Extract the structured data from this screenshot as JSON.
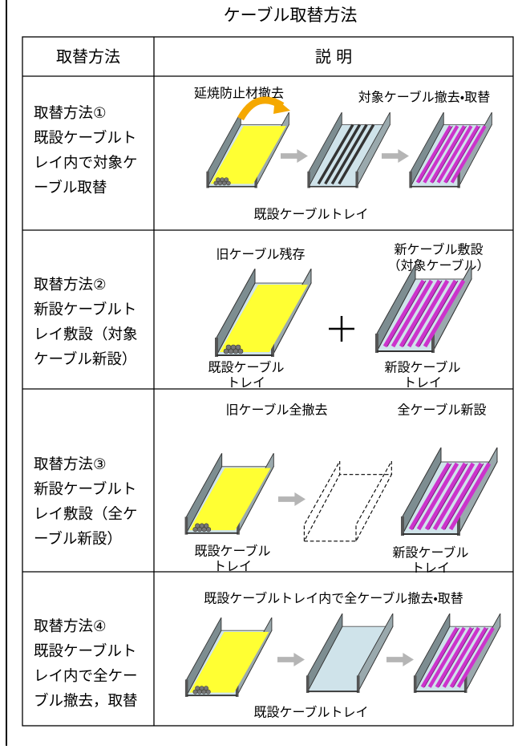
{
  "title": "ケーブル取替方法",
  "table": {
    "header": [
      "取替方法",
      "説 明"
    ],
    "rows": [
      {
        "method": [
          "取替方法①",
          "既設ケーブルト",
          "レイ内で対象ケ",
          "ーブル取替"
        ],
        "notes": [
          [
            "延焼防止材撤去"
          ],
          [
            "対象ケーブル撤去・取替"
          ],
          [
            "既設ケーブルトレイ"
          ]
        ]
      },
      {
        "method": [
          "取替方法②",
          "新設ケーブルト",
          "レイ敷設（対象",
          "ケーブル新設）"
        ],
        "notes": [
          [
            "旧ケーブル残存"
          ],
          [
            "新ケーブル敷設",
            "（対象ケーブル）"
          ],
          [
            "既設ケーブル",
            "トレイ"
          ],
          [
            "新設ケーブル",
            "トレイ"
          ]
        ]
      },
      {
        "method": [
          "取替方法③",
          "新設ケーブルト",
          "レイ敷設（全ケ",
          "ーブル新設）"
        ],
        "notes": [
          [
            "旧ケーブル全撤去"
          ],
          [
            "全ケーブル新設"
          ],
          [
            "既設ケーブル",
            "トレイ"
          ],
          [
            "新設ケーブル",
            "トレイ"
          ]
        ]
      },
      {
        "method": [
          "取替方法④",
          "既設ケーブルト",
          "レイ内で全ケー",
          "ブル撤去，取替"
        ],
        "notes": [
          [
            "既設ケーブルトレイ内で全ケーブル撤去・取替"
          ],
          [
            "既設ケーブルトレイ"
          ]
        ]
      }
    ]
  }
}
